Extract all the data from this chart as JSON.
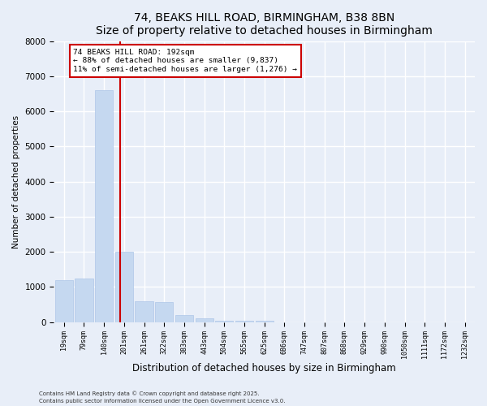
{
  "title1": "74, BEAKS HILL ROAD, BIRMINGHAM, B38 8BN",
  "title2": "Size of property relative to detached houses in Birmingham",
  "xlabel": "Distribution of detached houses by size in Birmingham",
  "ylabel": "Number of detached properties",
  "categories": [
    "19sqm",
    "79sqm",
    "140sqm",
    "201sqm",
    "261sqm",
    "322sqm",
    "383sqm",
    "443sqm",
    "504sqm",
    "565sqm",
    "625sqm",
    "686sqm",
    "747sqm",
    "807sqm",
    "868sqm",
    "929sqm",
    "990sqm",
    "1050sqm",
    "1111sqm",
    "1172sqm",
    "1232sqm"
  ],
  "values": [
    1200,
    1250,
    6600,
    2000,
    590,
    580,
    210,
    100,
    50,
    30,
    30,
    5,
    2,
    2,
    1,
    1,
    1,
    0,
    0,
    0,
    0
  ],
  "bar_color": "#c5d8f0",
  "bar_edge_color": "#aec6e8",
  "property_label": "74 BEAKS HILL ROAD: 192sqm",
  "annotation_line1": "← 88% of detached houses are smaller (9,837)",
  "annotation_line2": "11% of semi-detached houses are larger (1,276) →",
  "annotation_box_color": "#ffffff",
  "annotation_box_edge": "#cc0000",
  "red_line_color": "#cc0000",
  "ylim": [
    0,
    8000
  ],
  "yticks": [
    0,
    1000,
    2000,
    3000,
    4000,
    5000,
    6000,
    7000,
    8000
  ],
  "footer1": "Contains HM Land Registry data © Crown copyright and database right 2025.",
  "footer2": "Contains public sector information licensed under the Open Government Licence v3.0.",
  "bg_color": "#e8eef8",
  "plot_bg_color": "#e8eef8",
  "grid_color": "#ffffff",
  "title_fontsize": 10,
  "subtitle_fontsize": 9
}
